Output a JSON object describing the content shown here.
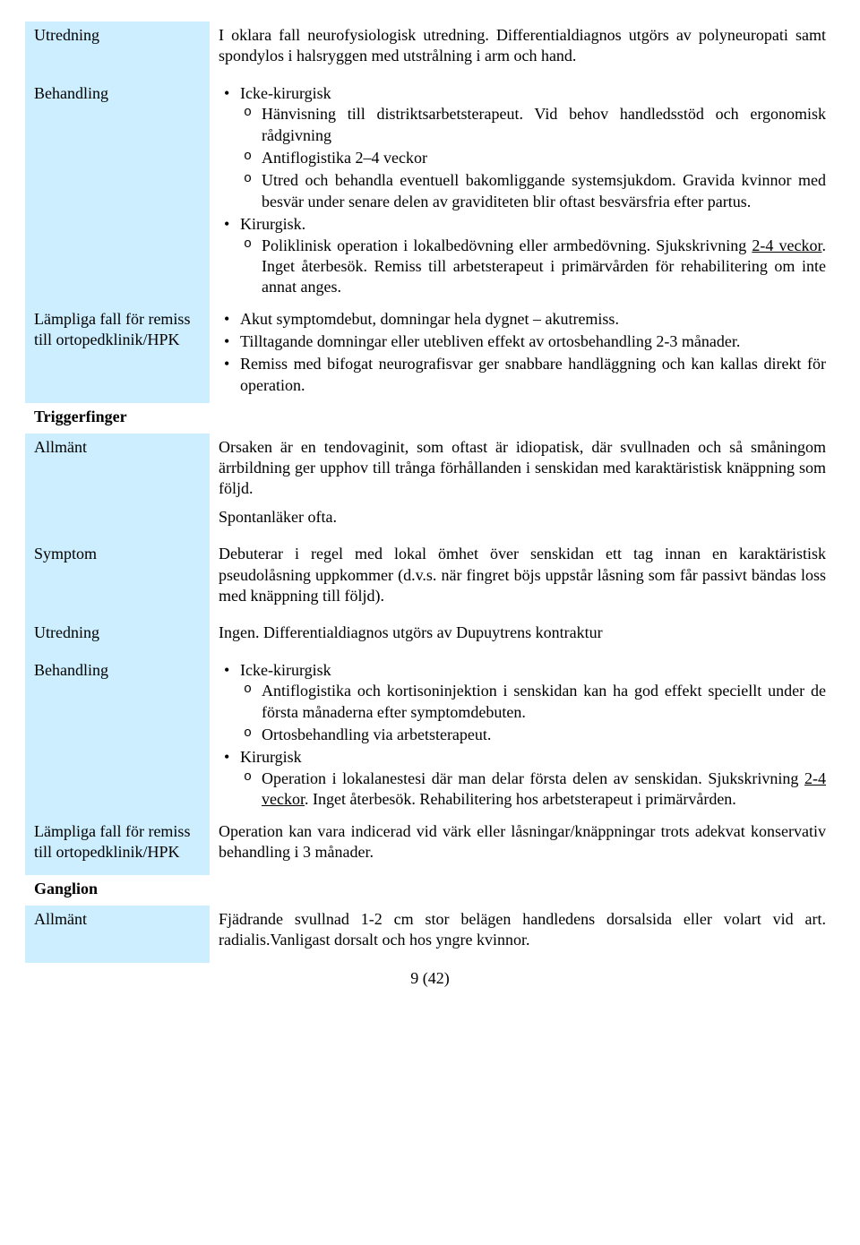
{
  "rows": {
    "utredning1": {
      "label": "Utredning",
      "text": "I oklara fall neurofysiologisk utredning. Differentialdiagnos utgörs av polyneuropati samt spondylos i halsryggen med utstrålning i arm och hand."
    },
    "behandling1": {
      "label": "Behandling",
      "icke_kirurgisk_label": "Icke-kirurgisk",
      "icke_sub1": "Hänvisning till distriktsarbetsterapeut. Vid behov handledsstöd och ergonomisk rådgivning",
      "icke_sub2": "Antiflogistika 2–4 veckor",
      "icke_sub3": "Utred och behandla eventuell bakomliggande systemsjukdom. Gravida kvinnor med besvär under senare delen av graviditeten blir oftast besvärsfria efter partus.",
      "kirurgisk_label": "Kirurgisk.",
      "kir_sub1_a": "Poliklinisk operation i lokalbedövning eller armbedövning. Sjukskrivning ",
      "kir_sub1_u": "2-4 veckor",
      "kir_sub1_b": ". Inget återbesök. Remiss till arbetsterapeut i primärvården för rehabilitering om inte annat anges."
    },
    "lampliga1": {
      "label": "Lämpliga fall för remiss till ortopedklinik/HPK",
      "b1": "Akut symptomdebut, domningar hela dygnet – akutremiss.",
      "b2": "Tilltagande domningar eller utebliven effekt av ortosbehandling 2-3 månader.",
      "b3": "Remiss med bifogat neurografisvar ger snabbare handläggning och kan kallas direkt för operation."
    },
    "triggerfinger_heading": "Triggerfinger",
    "allmant_tf": {
      "label": "Allmänt",
      "p1": "Orsaken är en tendovaginit, som oftast är idiopatisk, där svullnaden och så småningom ärrbildning ger upphov till trånga förhållanden i senskidan med karaktäristisk knäppning som följd.",
      "p2": "Spontanläker ofta."
    },
    "symptom_tf": {
      "label": "Symptom",
      "text": "Debuterar i regel med lokal ömhet över senskidan ett tag innan en karaktäristisk pseudolåsning uppkommer (d.v.s. när fingret böjs uppstår låsning som får passivt bändas loss med knäppning till följd)."
    },
    "utredning_tf": {
      "label": "Utredning",
      "text": "Ingen. Differentialdiagnos utgörs av Dupuytrens kontraktur"
    },
    "behandling_tf": {
      "label": "Behandling",
      "icke_label": "Icke-kirurgisk",
      "icke_sub1": "Antiflogistika och kortisoninjektion i senskidan kan ha god effekt speciellt under de första månaderna efter symptomdebuten.",
      "icke_sub2": "Ortosbehandling via arbetsterapeut.",
      "kir_label": "Kirurgisk",
      "kir_sub1_a": "Operation i lokalanestesi där man delar första delen av senskidan. Sjukskrivning ",
      "kir_sub1_u": "2-4 veckor",
      "kir_sub1_b": ". Inget återbesök. Rehabilitering hos arbetsterapeut i primärvården."
    },
    "lampliga_tf": {
      "label": "Lämpliga fall för remiss till ortopedklinik/HPK",
      "text": "Operation kan vara indicerad vid värk eller låsningar/knäppningar trots adekvat konservativ behandling i 3 månader."
    },
    "ganglion_heading": "Ganglion",
    "allmant_g": {
      "label": "Allmänt",
      "text": "Fjädrande svullnad 1-2 cm stor belägen handledens dorsalsida eller volart vid art. radialis.Vanligast dorsalt och hos yngre kvinnor."
    }
  },
  "pagenum": "9 (42)",
  "colors": {
    "leftcol_bg": "#cceeff",
    "border": "#000000",
    "text": "#000000",
    "bg": "#ffffff"
  }
}
